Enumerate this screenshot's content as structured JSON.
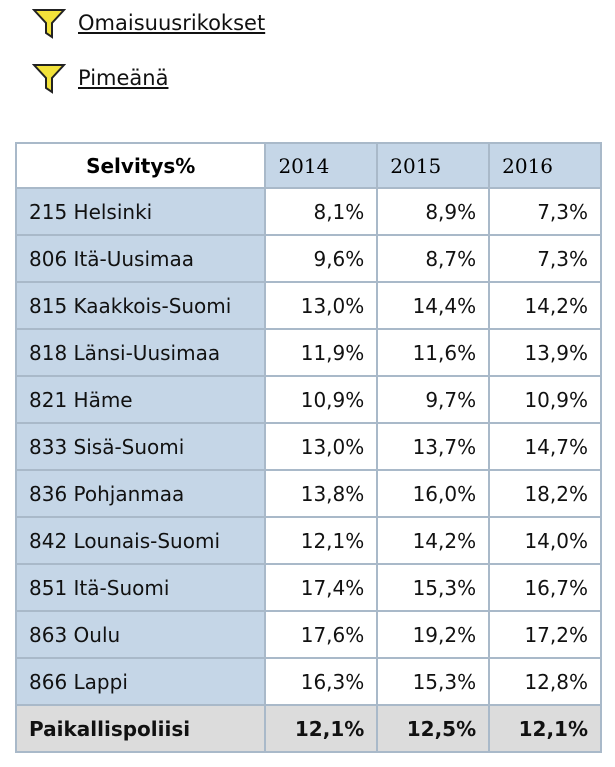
{
  "filters": [
    "Omaisuusrikokset",
    "Pimeänä"
  ],
  "table": {
    "header": [
      "Selvitys%",
      "2014",
      "2015",
      "2016"
    ],
    "rows": [
      [
        "215 Helsinki",
        "8,1%",
        "8,9%",
        "7,3%"
      ],
      [
        "806 Itä-Uusimaa",
        "9,6%",
        "8,7%",
        "7,3%"
      ],
      [
        "815 Kaakkois-Suomi",
        "13,0%",
        "14,4%",
        "14,2%"
      ],
      [
        "818 Länsi-Uusimaa",
        "11,9%",
        "11,6%",
        "13,9%"
      ],
      [
        "821 Häme",
        "10,9%",
        "9,7%",
        "10,9%"
      ],
      [
        "833 Sisä-Suomi",
        "13,0%",
        "13,7%",
        "14,7%"
      ],
      [
        "836 Pohjanmaa",
        "13,8%",
        "16,0%",
        "18,2%"
      ],
      [
        "842 Lounais-Suomi",
        "12,1%",
        "14,2%",
        "14,0%"
      ],
      [
        "851 Itä-Suomi",
        "17,4%",
        "15,3%",
        "16,7%"
      ],
      [
        "863 Oulu",
        "17,6%",
        "19,2%",
        "17,2%"
      ],
      [
        "866 Lappi",
        "16,3%",
        "15,3%",
        "12,8%"
      ]
    ],
    "footer": [
      "Paikallispoliisi",
      "12,1%",
      "12,5%",
      "12,1%"
    ]
  }
}
